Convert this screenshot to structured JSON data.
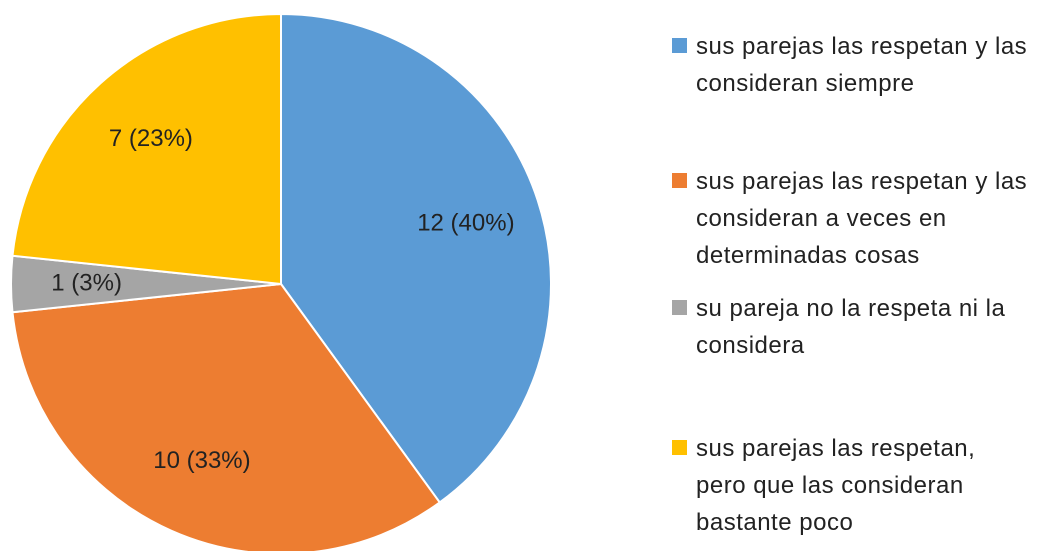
{
  "chart_data": {
    "type": "pie",
    "categories": [
      "sus parejas las respetan y las consideran siempre",
      "sus parejas las respetan y las consideran a veces en determinadas cosas",
      "su pareja no la respeta ni la considera",
      "sus parejas las respetan, pero que las consideran bastante poco"
    ],
    "values": [
      12,
      10,
      1,
      7
    ],
    "value_labels": [
      "12  (40%)",
      "10  (33%)",
      "1  (3%)",
      "7  (23%)"
    ],
    "colors": [
      "#5b9bd5",
      "#ed7d31",
      "#a5a5a5",
      "#ffc000"
    ],
    "legend": "right"
  }
}
